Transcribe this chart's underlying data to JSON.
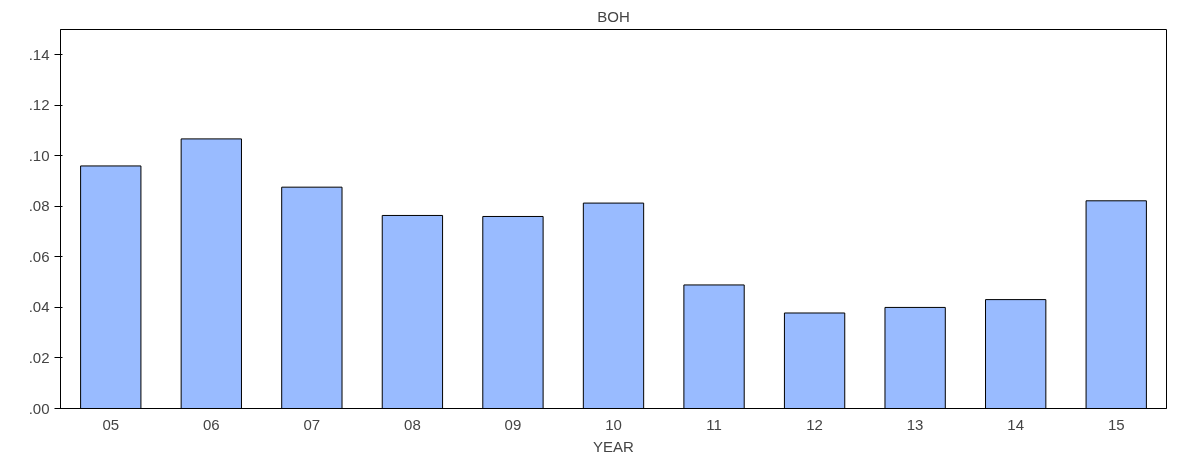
{
  "chart_data": {
    "type": "bar",
    "title": "BOH",
    "xlabel": "YEAR",
    "categories": [
      "05",
      "06",
      "07",
      "08",
      "09",
      "10",
      "11",
      "12",
      "13",
      "14",
      "15"
    ],
    "values": [
      0.096,
      0.1067,
      0.0876,
      0.0764,
      0.076,
      0.0813,
      0.0489,
      0.0378,
      0.04,
      0.0431,
      0.0822
    ],
    "color": "#99bbff",
    "ylim": [
      0,
      0.15
    ],
    "yticks": [
      {
        "value": 0,
        "label": ".00"
      },
      {
        "value": 0.02,
        "label": ".02"
      },
      {
        "value": 0.04,
        "label": ".04"
      },
      {
        "value": 0.06,
        "label": ".06"
      },
      {
        "value": 0.08,
        "label": ".08"
      },
      {
        "value": 0.1,
        "label": ".10"
      },
      {
        "value": 0.12,
        "label": ".12"
      },
      {
        "value": 0.14,
        "label": ".14"
      }
    ],
    "grid": false
  }
}
